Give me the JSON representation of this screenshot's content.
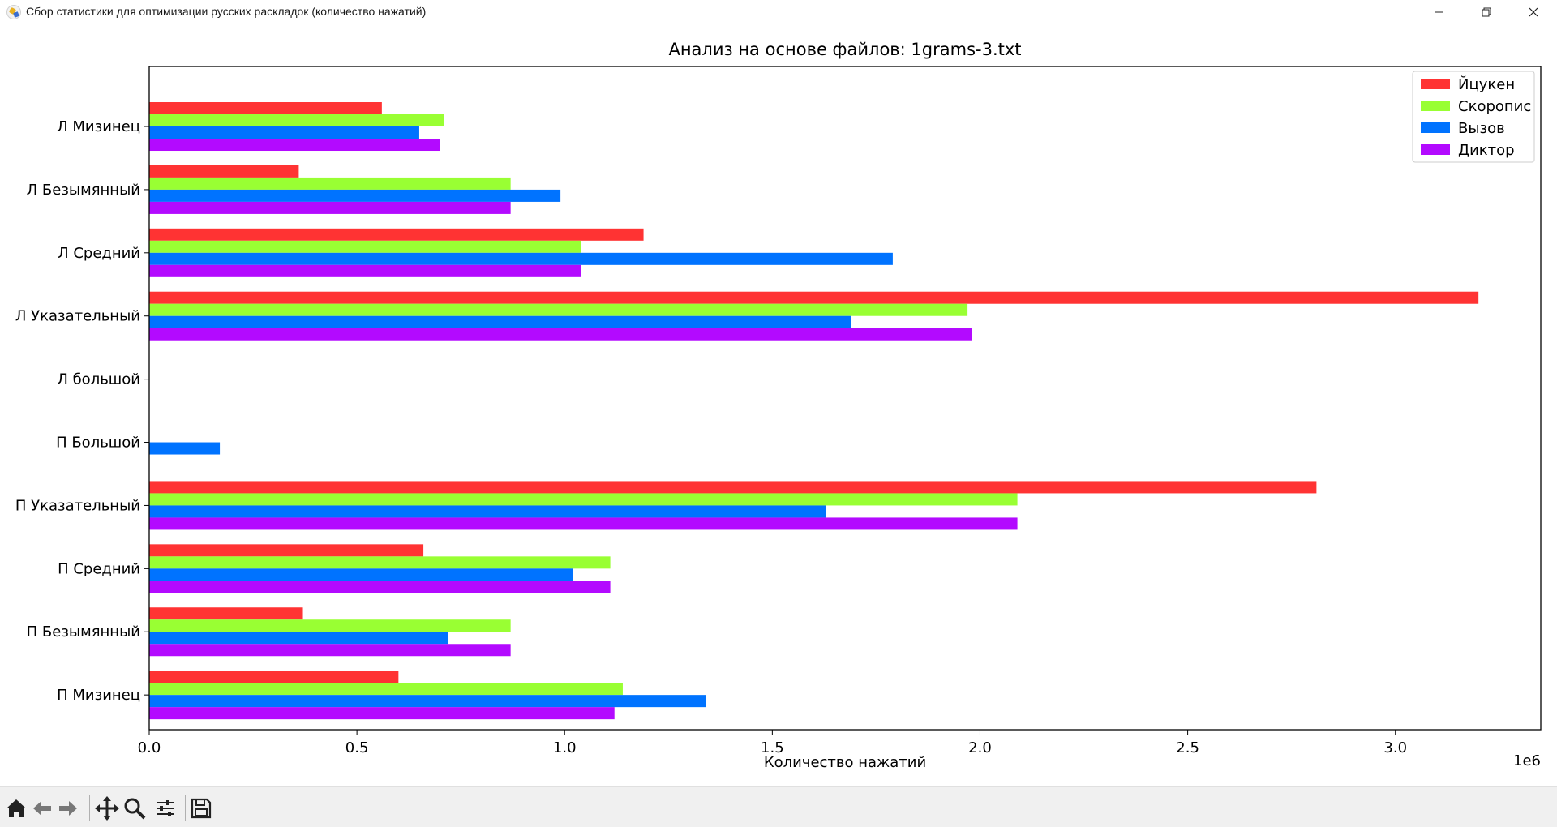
{
  "window": {
    "title": "Сбор статистики для оптимизации русских раскладок (количество нажатий)",
    "minimize_icon": "minimize-icon",
    "restore_icon": "restore-icon",
    "close_icon": "close-icon"
  },
  "chart_data": {
    "type": "bar",
    "orientation": "horizontal",
    "title": "Анализ на основе файлов: 1grams-3.txt",
    "xlabel": "Количество нажатий",
    "ylabel": "",
    "x_offset_label": "1e6",
    "xlim": [
      0,
      3.35
    ],
    "xticks": [
      0.0,
      0.5,
      1.0,
      1.5,
      2.0,
      2.5,
      3.0
    ],
    "xtick_labels": [
      "0.0",
      "0.5",
      "1.0",
      "1.5",
      "2.0",
      "2.5",
      "3.0"
    ],
    "grid": false,
    "legend_position": "top-right",
    "categories": [
      "Л Мизинец",
      "Л Безымянный",
      "Л Средний",
      "Л Указательный",
      "Л большой",
      "П Большой",
      "П Указательный",
      "П Средний",
      "П Безымянный",
      "П Мизинец"
    ],
    "series": [
      {
        "name": "Йцукен",
        "color": "#ff3333",
        "values": [
          0.56,
          0.36,
          1.19,
          3.2,
          0.0,
          0.0,
          2.81,
          0.66,
          0.37,
          0.6
        ]
      },
      {
        "name": "Скоропис",
        "color": "#99ff33",
        "values": [
          0.71,
          0.87,
          1.04,
          1.97,
          0.0,
          0.0,
          2.09,
          1.11,
          0.87,
          1.14
        ]
      },
      {
        "name": "Вызов",
        "color": "#0073ff",
        "values": [
          0.65,
          0.99,
          1.79,
          1.69,
          0.0,
          0.17,
          1.63,
          1.02,
          0.72,
          1.34
        ]
      },
      {
        "name": "Диктор",
        "color": "#b30aff",
        "values": [
          0.7,
          0.87,
          1.04,
          1.98,
          0.0,
          0.0,
          2.09,
          1.11,
          0.87,
          1.12
        ]
      }
    ]
  },
  "toolbar": {
    "tools": [
      "home-icon",
      "back-icon",
      "forward-icon",
      "pan-icon",
      "zoom-icon",
      "configure-subplots-icon",
      "save-icon"
    ]
  }
}
